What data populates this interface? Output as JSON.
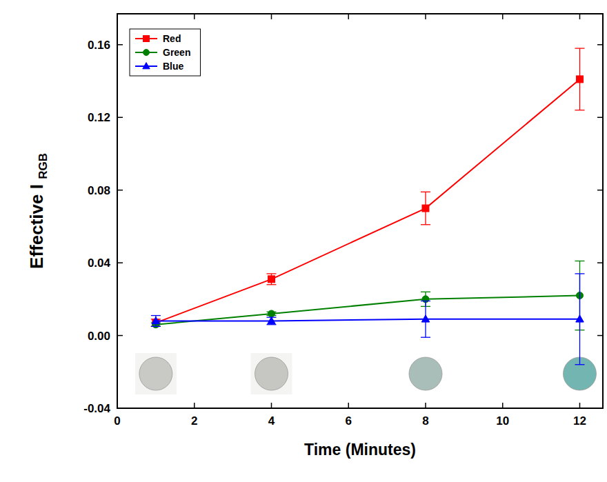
{
  "chart_data": {
    "type": "line",
    "x_label": "Time (Minutes)",
    "y_label": "Effective I",
    "y_label_subscript": "RGB",
    "x": [
      1,
      4,
      8,
      12
    ],
    "series": [
      {
        "name": "Red",
        "color": "#ff0000",
        "marker": "square",
        "values": [
          0.007,
          0.031,
          0.07,
          0.141
        ],
        "errors": [
          0.002,
          0.003,
          0.009,
          0.017
        ]
      },
      {
        "name": "Green",
        "color": "#008000",
        "marker": "circle",
        "values": [
          0.006,
          0.012,
          0.02,
          0.022
        ],
        "errors": [
          0.001,
          0.001,
          0.004,
          0.019
        ]
      },
      {
        "name": "Blue",
        "color": "#0000ff",
        "marker": "triangle",
        "values": [
          0.008,
          0.008,
          0.009,
          0.009
        ],
        "errors": [
          0.003,
          0.002,
          0.01,
          0.025
        ]
      }
    ],
    "xlim": [
      0,
      12.6
    ],
    "xticks": [
      0,
      2,
      4,
      6,
      8,
      10,
      12
    ],
    "ylim": [
      -0.04,
      0.177
    ],
    "yticks": [
      -0.04,
      {
        "value": 0,
        "label": "0.00"
      },
      0.04,
      0.08,
      0.12,
      0.16
    ],
    "legend": "upper left",
    "grid": false
  }
}
